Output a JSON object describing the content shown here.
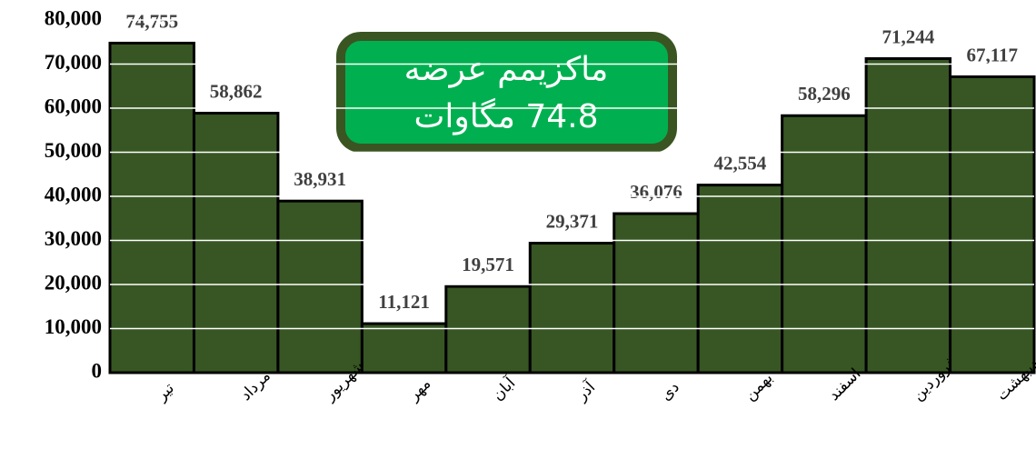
{
  "chart_data": {
    "type": "bar",
    "categories": [
      "تیر",
      "مرداد",
      "شهریور",
      "مهر",
      "آبان",
      "آذر",
      "دی",
      "بهمن",
      "اسفند",
      "فروردین",
      "اردیبهشت"
    ],
    "values": [
      74755,
      58862,
      38931,
      11121,
      19571,
      29371,
      36076,
      42554,
      58296,
      71244,
      67117
    ],
    "value_labels": [
      "74,755",
      "58,862",
      "38,931",
      "11,121",
      "19,571",
      "29,371",
      "36,076",
      "42,554",
      "58,296",
      "71,244",
      "67,117"
    ],
    "color": "#375623",
    "ylim": [
      0,
      80000
    ],
    "yticks": [
      0,
      {
        "value": 10000,
        "label": "10,000"
      },
      {
        "value": 20000,
        "label": "20,000"
      },
      {
        "value": 30000,
        "label": "30,000"
      },
      {
        "value": 40000,
        "label": "40,000"
      },
      {
        "value": 50000,
        "label": "50,000"
      },
      {
        "value": 60000,
        "label": "60,000"
      },
      {
        "value": 70000,
        "label": "70,000"
      },
      {
        "value": 80000,
        "label": "80,000"
      }
    ],
    "grid": true,
    "annotations": [
      "ماکزیمم عرضه",
      "74.8 مگاوات"
    ]
  }
}
